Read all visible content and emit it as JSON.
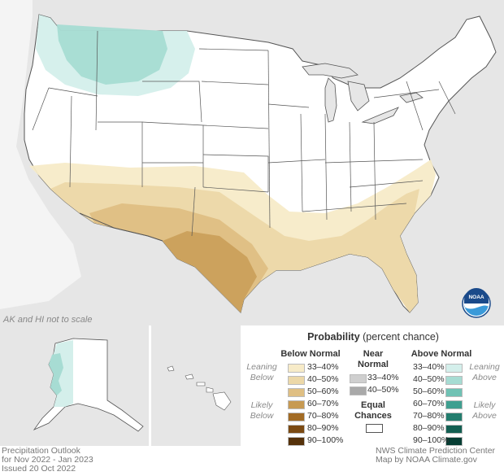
{
  "note": "AK and HI not to scale",
  "legend": {
    "title": "Probability",
    "title_suffix": " (percent chance)",
    "below_head": "Below Normal",
    "near_head_1": "Near",
    "near_head_2": "Normal",
    "above_head": "Above Normal",
    "leaning_below_1": "Leaning",
    "leaning_below_2": "Below",
    "likely_below_1": "Likely",
    "likely_below_2": "Below",
    "leaning_above_1": "Leaning",
    "leaning_above_2": "Above",
    "likely_above_1": "Likely",
    "likely_above_2": "Above",
    "equal_1": "Equal",
    "equal_2": "Chances",
    "below": [
      {
        "label": "33–40%",
        "color": "#f7ebc8"
      },
      {
        "label": "40–50%",
        "color": "#ecd8a8"
      },
      {
        "label": "50–60%",
        "color": "#dfbf83"
      },
      {
        "label": "60–70%",
        "color": "#c79a52"
      },
      {
        "label": "70–80%",
        "color": "#a26b24"
      },
      {
        "label": "80–90%",
        "color": "#7b4a12"
      },
      {
        "label": "90–100%",
        "color": "#55310a"
      }
    ],
    "near": [
      {
        "label": "33–40%",
        "color": "#cfcfcf"
      },
      {
        "label": "40–50%",
        "color": "#a9a9a9"
      }
    ],
    "above": [
      {
        "label": "33–40%",
        "color": "#d4efeb"
      },
      {
        "label": "40–50%",
        "color": "#a7dcd3"
      },
      {
        "label": "50–60%",
        "color": "#70c2b4"
      },
      {
        "label": "60–70%",
        "color": "#3f9f90"
      },
      {
        "label": "70–80%",
        "color": "#237d6e"
      },
      {
        "label": "80–90%",
        "color": "#135f52"
      },
      {
        "label": "90–100%",
        "color": "#063d33"
      }
    ]
  },
  "footer": {
    "line1": "Precipitation Outlook",
    "line2": "for Nov 2022 - Jan 2023",
    "line3": "Issued 20 Oct 2022",
    "credit1": "NWS Climate Prediction Center",
    "credit2": "Map by NOAA Climate.gov"
  },
  "logo_text": "NOAA",
  "colors": {
    "background_land": "#e6e6e6",
    "us_land": "#ffffff",
    "border": "#555555",
    "water": "#ffffff"
  }
}
